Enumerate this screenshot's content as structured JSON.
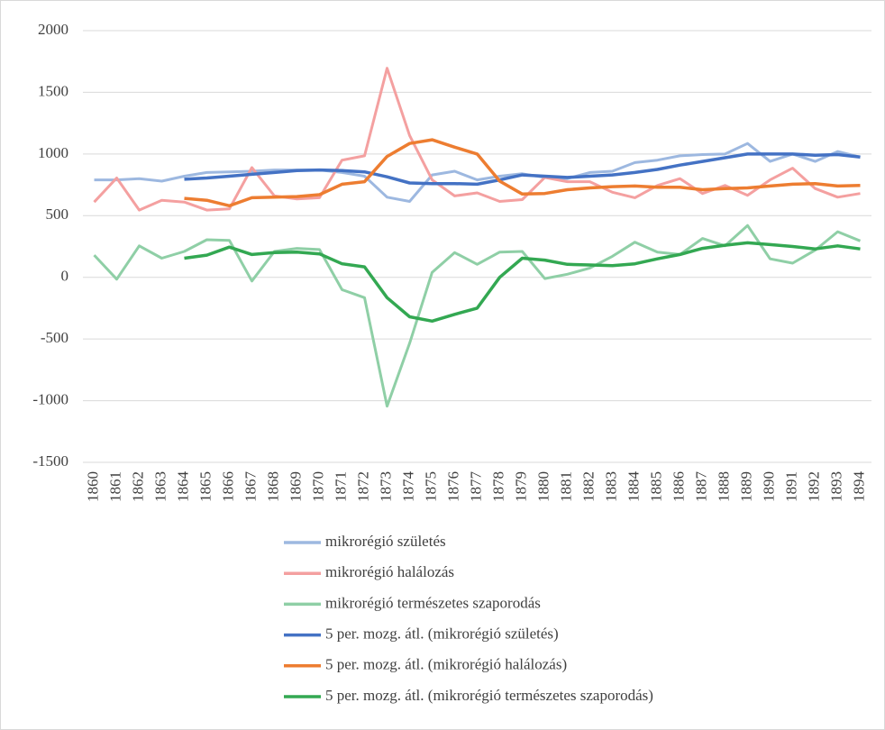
{
  "chart_data": {
    "type": "line",
    "categories": [
      "1860",
      "1861",
      "1862",
      "1863",
      "1864",
      "1865",
      "1866",
      "1867",
      "1868",
      "1869",
      "1870",
      "1871",
      "1872",
      "1873",
      "1874",
      "1875",
      "1876",
      "1877",
      "1878",
      "1879",
      "1880",
      "1881",
      "1882",
      "1883",
      "1884",
      "1885",
      "1886",
      "1887",
      "1888",
      "1889",
      "1890",
      "1891",
      "1892",
      "1893",
      "1894"
    ],
    "ylim": [
      -1500,
      2000
    ],
    "yticks": [
      -1500,
      -1000,
      -500,
      0,
      500,
      1000,
      1500,
      2000
    ],
    "grid": true,
    "legend": "bottom",
    "series": [
      {
        "name": "mikrorégió születés",
        "color": "#9db8e0",
        "values": [
          790,
          790,
          800,
          780,
          820,
          850,
          855,
          860,
          870,
          870,
          870,
          850,
          820,
          650,
          615,
          830,
          860,
          790,
          820,
          840,
          810,
          800,
          850,
          860,
          930,
          950,
          985,
          995,
          1000,
          1085,
          940,
          1000,
          940,
          1020,
          975
        ]
      },
      {
        "name": "mikrorégió halálozás",
        "color": "#f4a0a0",
        "values": [
          610,
          805,
          545,
          625,
          610,
          545,
          555,
          890,
          660,
          635,
          645,
          950,
          985,
          1695,
          1150,
          790,
          660,
          685,
          615,
          630,
          810,
          775,
          775,
          690,
          645,
          745,
          800,
          680,
          745,
          665,
          790,
          885,
          720,
          650,
          680
        ]
      },
      {
        "name": "mikrorégió természetes szaporodás",
        "color": "#8fcfa6",
        "values": [
          180,
          -15,
          255,
          155,
          210,
          305,
          300,
          -30,
          210,
          235,
          225,
          -100,
          -165,
          -1045,
          -535,
          40,
          200,
          105,
          205,
          210,
          -10,
          25,
          75,
          170,
          285,
          205,
          185,
          315,
          255,
          420,
          150,
          115,
          220,
          370,
          295
        ]
      },
      {
        "name": "5 per. mozg. átl. (mikrorégió születés)",
        "color": "#4472c4",
        "values": [
          null,
          null,
          null,
          null,
          795,
          805,
          820,
          835,
          850,
          865,
          870,
          865,
          855,
          815,
          765,
          760,
          760,
          755,
          790,
          830,
          820,
          810,
          820,
          830,
          850,
          875,
          910,
          940,
          970,
          1000,
          1000,
          1000,
          990,
          995,
          975
        ]
      },
      {
        "name": "5 per. mozg. átl. (mikrorégió halálozás)",
        "color": "#ed7d31",
        "values": [
          null,
          null,
          null,
          null,
          640,
          625,
          580,
          645,
          650,
          655,
          670,
          755,
          775,
          980,
          1085,
          1115,
          1055,
          1000,
          780,
          675,
          680,
          710,
          725,
          735,
          740,
          730,
          730,
          710,
          720,
          725,
          740,
          755,
          760,
          740,
          745
        ]
      },
      {
        "name": "5 per. mozg. átl. (mikrorégió természetes szaporodás)",
        "color": "#33a852",
        "values": [
          null,
          null,
          null,
          null,
          155,
          180,
          245,
          185,
          200,
          205,
          190,
          110,
          85,
          -165,
          -320,
          -355,
          -300,
          -250,
          0,
          155,
          140,
          105,
          100,
          95,
          110,
          150,
          185,
          235,
          260,
          280,
          265,
          250,
          230,
          255,
          230
        ]
      }
    ]
  }
}
